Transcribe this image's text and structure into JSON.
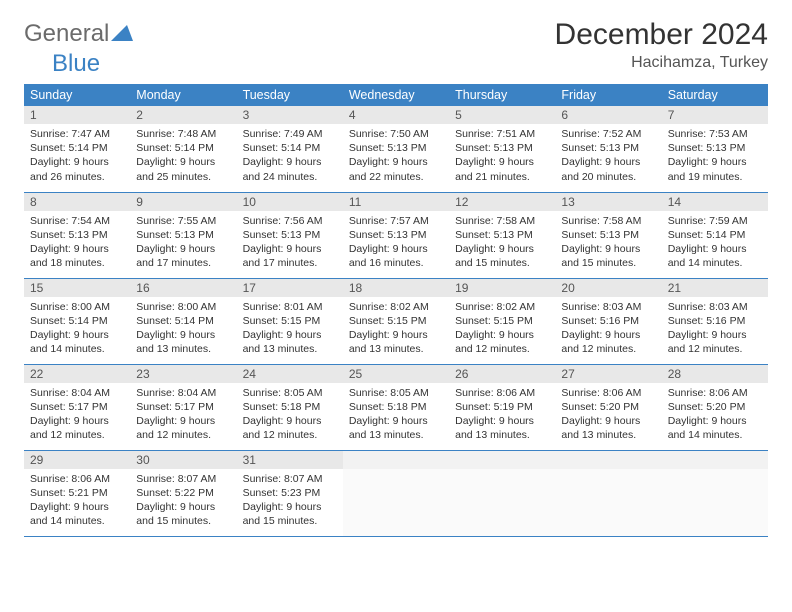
{
  "brand": {
    "name_a": "General",
    "name_b": "Blue"
  },
  "title": "December 2024",
  "location": "Hacihamza, Turkey",
  "colors": {
    "header_bg": "#3b82c4",
    "header_fg": "#ffffff",
    "daynum_bg": "#e8e8e8",
    "rule": "#3b82c4",
    "logo_gray": "#6b6b6b",
    "logo_blue": "#3b82c4"
  },
  "weekdays": [
    "Sunday",
    "Monday",
    "Tuesday",
    "Wednesday",
    "Thursday",
    "Friday",
    "Saturday"
  ],
  "weeks": [
    [
      {
        "n": "1",
        "sunrise": "7:47 AM",
        "sunset": "5:14 PM",
        "daylight": "9 hours and 26 minutes."
      },
      {
        "n": "2",
        "sunrise": "7:48 AM",
        "sunset": "5:14 PM",
        "daylight": "9 hours and 25 minutes."
      },
      {
        "n": "3",
        "sunrise": "7:49 AM",
        "sunset": "5:14 PM",
        "daylight": "9 hours and 24 minutes."
      },
      {
        "n": "4",
        "sunrise": "7:50 AM",
        "sunset": "5:13 PM",
        "daylight": "9 hours and 22 minutes."
      },
      {
        "n": "5",
        "sunrise": "7:51 AM",
        "sunset": "5:13 PM",
        "daylight": "9 hours and 21 minutes."
      },
      {
        "n": "6",
        "sunrise": "7:52 AM",
        "sunset": "5:13 PM",
        "daylight": "9 hours and 20 minutes."
      },
      {
        "n": "7",
        "sunrise": "7:53 AM",
        "sunset": "5:13 PM",
        "daylight": "9 hours and 19 minutes."
      }
    ],
    [
      {
        "n": "8",
        "sunrise": "7:54 AM",
        "sunset": "5:13 PM",
        "daylight": "9 hours and 18 minutes."
      },
      {
        "n": "9",
        "sunrise": "7:55 AM",
        "sunset": "5:13 PM",
        "daylight": "9 hours and 17 minutes."
      },
      {
        "n": "10",
        "sunrise": "7:56 AM",
        "sunset": "5:13 PM",
        "daylight": "9 hours and 17 minutes."
      },
      {
        "n": "11",
        "sunrise": "7:57 AM",
        "sunset": "5:13 PM",
        "daylight": "9 hours and 16 minutes."
      },
      {
        "n": "12",
        "sunrise": "7:58 AM",
        "sunset": "5:13 PM",
        "daylight": "9 hours and 15 minutes."
      },
      {
        "n": "13",
        "sunrise": "7:58 AM",
        "sunset": "5:13 PM",
        "daylight": "9 hours and 15 minutes."
      },
      {
        "n": "14",
        "sunrise": "7:59 AM",
        "sunset": "5:14 PM",
        "daylight": "9 hours and 14 minutes."
      }
    ],
    [
      {
        "n": "15",
        "sunrise": "8:00 AM",
        "sunset": "5:14 PM",
        "daylight": "9 hours and 14 minutes."
      },
      {
        "n": "16",
        "sunrise": "8:00 AM",
        "sunset": "5:14 PM",
        "daylight": "9 hours and 13 minutes."
      },
      {
        "n": "17",
        "sunrise": "8:01 AM",
        "sunset": "5:15 PM",
        "daylight": "9 hours and 13 minutes."
      },
      {
        "n": "18",
        "sunrise": "8:02 AM",
        "sunset": "5:15 PM",
        "daylight": "9 hours and 13 minutes."
      },
      {
        "n": "19",
        "sunrise": "8:02 AM",
        "sunset": "5:15 PM",
        "daylight": "9 hours and 12 minutes."
      },
      {
        "n": "20",
        "sunrise": "8:03 AM",
        "sunset": "5:16 PM",
        "daylight": "9 hours and 12 minutes."
      },
      {
        "n": "21",
        "sunrise": "8:03 AM",
        "sunset": "5:16 PM",
        "daylight": "9 hours and 12 minutes."
      }
    ],
    [
      {
        "n": "22",
        "sunrise": "8:04 AM",
        "sunset": "5:17 PM",
        "daylight": "9 hours and 12 minutes."
      },
      {
        "n": "23",
        "sunrise": "8:04 AM",
        "sunset": "5:17 PM",
        "daylight": "9 hours and 12 minutes."
      },
      {
        "n": "24",
        "sunrise": "8:05 AM",
        "sunset": "5:18 PM",
        "daylight": "9 hours and 12 minutes."
      },
      {
        "n": "25",
        "sunrise": "8:05 AM",
        "sunset": "5:18 PM",
        "daylight": "9 hours and 13 minutes."
      },
      {
        "n": "26",
        "sunrise": "8:06 AM",
        "sunset": "5:19 PM",
        "daylight": "9 hours and 13 minutes."
      },
      {
        "n": "27",
        "sunrise": "8:06 AM",
        "sunset": "5:20 PM",
        "daylight": "9 hours and 13 minutes."
      },
      {
        "n": "28",
        "sunrise": "8:06 AM",
        "sunset": "5:20 PM",
        "daylight": "9 hours and 14 minutes."
      }
    ],
    [
      {
        "n": "29",
        "sunrise": "8:06 AM",
        "sunset": "5:21 PM",
        "daylight": "9 hours and 14 minutes."
      },
      {
        "n": "30",
        "sunrise": "8:07 AM",
        "sunset": "5:22 PM",
        "daylight": "9 hours and 15 minutes."
      },
      {
        "n": "31",
        "sunrise": "8:07 AM",
        "sunset": "5:23 PM",
        "daylight": "9 hours and 15 minutes."
      },
      null,
      null,
      null,
      null
    ]
  ],
  "labels": {
    "sunrise": "Sunrise:",
    "sunset": "Sunset:",
    "daylight": "Daylight:"
  }
}
